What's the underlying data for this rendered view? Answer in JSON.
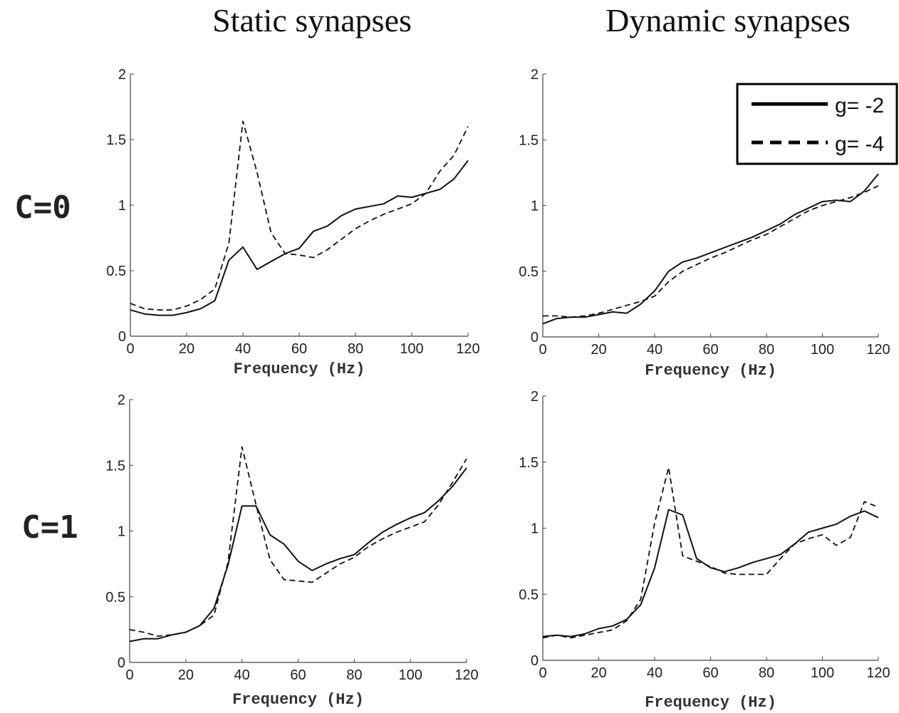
{
  "col_titles": [
    "Static synapses",
    "Dynamic synapses"
  ],
  "row_labels": [
    "C=0",
    "C=1"
  ],
  "legend": {
    "position": "top-right of top-right panel",
    "entries": [
      {
        "label": "g= -2",
        "style": "solid"
      },
      {
        "label": "g= -4",
        "style": "dashed"
      }
    ]
  },
  "chart_data": [
    {
      "type": "line",
      "panel": "static-c0",
      "xlabel": "Frequency (Hz)",
      "ylabel": "",
      "xlim": [
        0,
        120
      ],
      "ylim": [
        0,
        2
      ],
      "xticks": [
        0,
        20,
        40,
        60,
        80,
        100,
        120
      ],
      "yticks": [
        0,
        0.5,
        1,
        1.5,
        2
      ],
      "series": [
        {
          "name": "g= -2",
          "style": "solid",
          "x": [
            0,
            5,
            10,
            15,
            20,
            25,
            30,
            35,
            40,
            45,
            50,
            55,
            60,
            65,
            70,
            75,
            80,
            85,
            90,
            95,
            100,
            105,
            110,
            115,
            120
          ],
          "y": [
            0.2,
            0.17,
            0.16,
            0.16,
            0.18,
            0.21,
            0.27,
            0.58,
            0.68,
            0.51,
            0.57,
            0.63,
            0.67,
            0.8,
            0.84,
            0.92,
            0.97,
            0.99,
            1.01,
            1.07,
            1.06,
            1.09,
            1.12,
            1.2,
            1.34
          ]
        },
        {
          "name": "g= -4",
          "style": "dashed",
          "x": [
            0,
            5,
            10,
            15,
            20,
            25,
            30,
            35,
            40,
            45,
            50,
            55,
            60,
            65,
            70,
            75,
            80,
            85,
            90,
            95,
            100,
            105,
            110,
            115,
            120
          ],
          "y": [
            0.25,
            0.21,
            0.2,
            0.2,
            0.23,
            0.28,
            0.36,
            0.71,
            1.64,
            1.25,
            0.79,
            0.63,
            0.62,
            0.6,
            0.66,
            0.74,
            0.82,
            0.88,
            0.93,
            0.97,
            1.01,
            1.09,
            1.26,
            1.38,
            1.6
          ]
        }
      ]
    },
    {
      "type": "line",
      "panel": "dynamic-c0",
      "xlabel": "Frequency (Hz)",
      "ylabel": "",
      "xlim": [
        0,
        120
      ],
      "ylim": [
        0,
        2
      ],
      "xticks": [
        0,
        20,
        40,
        60,
        80,
        100,
        120
      ],
      "yticks": [
        0,
        0.5,
        1,
        1.5,
        2
      ],
      "series": [
        {
          "name": "g= -2",
          "style": "solid",
          "x": [
            0,
            5,
            10,
            15,
            20,
            25,
            30,
            35,
            40,
            45,
            50,
            55,
            60,
            65,
            70,
            75,
            80,
            85,
            90,
            95,
            100,
            105,
            110,
            115,
            120
          ],
          "y": [
            0.1,
            0.14,
            0.15,
            0.15,
            0.17,
            0.19,
            0.18,
            0.25,
            0.35,
            0.5,
            0.57,
            0.6,
            0.64,
            0.68,
            0.72,
            0.76,
            0.81,
            0.86,
            0.93,
            0.98,
            1.03,
            1.04,
            1.03,
            1.11,
            1.24
          ]
        },
        {
          "name": "g= -4",
          "style": "dashed",
          "x": [
            0,
            5,
            10,
            15,
            20,
            25,
            30,
            35,
            40,
            45,
            50,
            55,
            60,
            65,
            70,
            75,
            80,
            85,
            90,
            95,
            100,
            105,
            110,
            115,
            120
          ],
          "y": [
            0.16,
            0.16,
            0.15,
            0.16,
            0.18,
            0.21,
            0.24,
            0.27,
            0.31,
            0.42,
            0.5,
            0.55,
            0.6,
            0.64,
            0.69,
            0.74,
            0.78,
            0.84,
            0.9,
            0.96,
            1.0,
            1.03,
            1.06,
            1.1,
            1.15
          ]
        }
      ]
    },
    {
      "type": "line",
      "panel": "static-c1",
      "xlabel": "Frequency (Hz)",
      "ylabel": "",
      "xlim": [
        0,
        120
      ],
      "ylim": [
        0,
        2
      ],
      "xticks": [
        0,
        20,
        40,
        60,
        80,
        100,
        120
      ],
      "yticks": [
        0,
        0.5,
        1,
        1.5,
        2
      ],
      "series": [
        {
          "name": "g= -2",
          "style": "solid",
          "x": [
            0,
            5,
            10,
            15,
            20,
            25,
            30,
            35,
            40,
            45,
            50,
            55,
            60,
            65,
            70,
            75,
            80,
            85,
            90,
            95,
            100,
            105,
            110,
            115,
            120
          ],
          "y": [
            0.16,
            0.18,
            0.18,
            0.21,
            0.23,
            0.28,
            0.41,
            0.74,
            1.19,
            1.19,
            0.97,
            0.9,
            0.77,
            0.7,
            0.75,
            0.79,
            0.82,
            0.91,
            0.99,
            1.05,
            1.1,
            1.14,
            1.23,
            1.34,
            1.48
          ]
        },
        {
          "name": "g= -4",
          "style": "dashed",
          "x": [
            0,
            5,
            10,
            15,
            20,
            25,
            30,
            35,
            40,
            45,
            50,
            55,
            60,
            65,
            70,
            75,
            80,
            85,
            90,
            95,
            100,
            105,
            110,
            115,
            120
          ],
          "y": [
            0.25,
            0.23,
            0.2,
            0.21,
            0.23,
            0.28,
            0.36,
            0.76,
            1.64,
            1.2,
            0.78,
            0.63,
            0.62,
            0.61,
            0.68,
            0.75,
            0.8,
            0.88,
            0.94,
            0.99,
            1.03,
            1.07,
            1.2,
            1.37,
            1.55
          ]
        }
      ]
    },
    {
      "type": "line",
      "panel": "dynamic-c1",
      "xlabel": "Frequency (Hz)",
      "ylabel": "",
      "xlim": [
        0,
        120
      ],
      "ylim": [
        0,
        2
      ],
      "xticks": [
        0,
        20,
        40,
        60,
        80,
        100,
        120
      ],
      "yticks": [
        0,
        0.5,
        1,
        1.5,
        2
      ],
      "series": [
        {
          "name": "g= -2",
          "style": "solid",
          "x": [
            0,
            5,
            10,
            15,
            20,
            25,
            30,
            35,
            40,
            45,
            50,
            55,
            60,
            65,
            70,
            75,
            80,
            85,
            90,
            95,
            100,
            105,
            110,
            115,
            120
          ],
          "y": [
            0.18,
            0.19,
            0.18,
            0.2,
            0.24,
            0.26,
            0.31,
            0.42,
            0.7,
            1.14,
            1.1,
            0.77,
            0.7,
            0.67,
            0.7,
            0.74,
            0.77,
            0.8,
            0.88,
            0.97,
            1.0,
            1.03,
            1.09,
            1.13,
            1.08
          ]
        },
        {
          "name": "g= -4",
          "style": "dashed",
          "x": [
            0,
            5,
            10,
            15,
            20,
            25,
            30,
            35,
            40,
            45,
            50,
            55,
            60,
            65,
            70,
            75,
            80,
            85,
            90,
            95,
            100,
            105,
            110,
            115,
            120
          ],
          "y": [
            0.17,
            0.19,
            0.17,
            0.19,
            0.21,
            0.23,
            0.3,
            0.46,
            1.04,
            1.46,
            0.79,
            0.75,
            0.71,
            0.66,
            0.65,
            0.65,
            0.65,
            0.77,
            0.88,
            0.92,
            0.95,
            0.87,
            0.93,
            1.2,
            1.16
          ]
        }
      ]
    }
  ]
}
